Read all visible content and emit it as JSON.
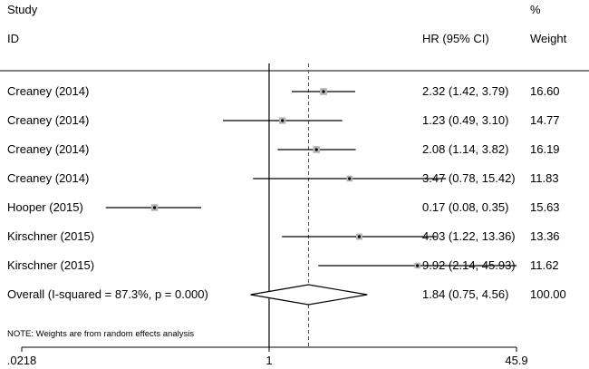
{
  "header": {
    "study_label": "Study",
    "id_label": "ID",
    "effect_label": "HR (95% CI)",
    "pct_label": "%",
    "weight_label": "Weight"
  },
  "note": "NOTE: Weights are from random effects analysis",
  "chart_data": {
    "type": "forest",
    "scale": "log",
    "effect_measure": "HR (95% CI)",
    "null_value": 1,
    "overall_value": 1.84,
    "x_ticks": [
      {
        "value": 0.0218,
        "label": ".0218"
      },
      {
        "value": 1,
        "label": "1"
      },
      {
        "value": 45.9,
        "label": "45.9"
      }
    ],
    "xlim": [
      0.0218,
      45.9
    ],
    "studies": [
      {
        "id": "Creaney (2014)",
        "hr": 2.32,
        "lo": 1.42,
        "hi": 3.79,
        "ci_text": "2.32 (1.42, 3.79)",
        "weight": 16.6,
        "weight_text": "16.60"
      },
      {
        "id": "Creaney (2014)",
        "hr": 1.23,
        "lo": 0.49,
        "hi": 3.1,
        "ci_text": "1.23 (0.49, 3.10)",
        "weight": 14.77,
        "weight_text": "14.77"
      },
      {
        "id": "Creaney (2014)",
        "hr": 2.08,
        "lo": 1.14,
        "hi": 3.82,
        "ci_text": "2.08 (1.14, 3.82)",
        "weight": 16.19,
        "weight_text": "16.19"
      },
      {
        "id": "Creaney (2014)",
        "hr": 3.47,
        "lo": 0.78,
        "hi": 15.42,
        "ci_text": "3.47 (0.78, 15.42)",
        "weight": 11.83,
        "weight_text": "11.83"
      },
      {
        "id": "Hooper (2015)",
        "hr": 0.17,
        "lo": 0.08,
        "hi": 0.35,
        "ci_text": "0.17 (0.08, 0.35)",
        "weight": 15.63,
        "weight_text": "15.63"
      },
      {
        "id": "Kirschner (2015)",
        "hr": 4.03,
        "lo": 1.22,
        "hi": 13.36,
        "ci_text": "4.03 (1.22, 13.36)",
        "weight": 13.36,
        "weight_text": "13.36"
      },
      {
        "id": "Kirschner (2015)",
        "hr": 9.92,
        "lo": 2.14,
        "hi": 45.93,
        "ci_text": "9.92 (2.14, 45.93)",
        "weight": 11.62,
        "weight_text": "11.62"
      }
    ],
    "overall": {
      "id": "Overall  (I-squared = 87.3%, p = 0.000)",
      "hr": 1.84,
      "lo": 0.75,
      "hi": 4.56,
      "ci_text": "1.84 (0.75, 4.56)",
      "weight": 100.0,
      "weight_text": "100.00"
    }
  }
}
